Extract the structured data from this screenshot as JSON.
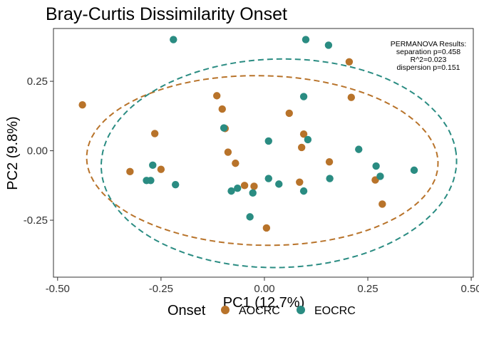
{
  "chart_data": {
    "type": "scatter",
    "title": "Bray-Curtis Dissimilarity Onset",
    "xlabel": "PC1 (12.7%)",
    "ylabel": "PC2 (9.8%)",
    "xlim": [
      -0.51,
      0.505
    ],
    "ylim": [
      -0.455,
      0.44
    ],
    "x_ticks": [
      -0.5,
      -0.25,
      0.0,
      0.25,
      0.5
    ],
    "x_tick_labels": [
      "-0.50",
      "-0.25",
      "0.00",
      "0.25",
      "0.50"
    ],
    "y_ticks": [
      -0.25,
      0.0,
      0.25
    ],
    "y_tick_labels": [
      "-0.25",
      "0.00",
      "0.25"
    ],
    "grid": false,
    "annotation": [
      "PERMANOVA Results:",
      "separation p=0.458",
      "R^2=0.023",
      "dispersion p=0.151"
    ],
    "legend": {
      "title": "Onset",
      "position": "bottom"
    },
    "series": [
      {
        "name": "AOCRC",
        "color": "#B8732A",
        "ellipse": {
          "center": [
            -0.005,
            -0.035
          ],
          "radius": [
            0.425,
            0.305
          ],
          "angle_deg": -3
        },
        "points": [
          [
            -0.44,
            0.165
          ],
          [
            -0.265,
            0.062
          ],
          [
            -0.325,
            -0.075
          ],
          [
            -0.25,
            -0.067
          ],
          [
            -0.115,
            0.198
          ],
          [
            -0.102,
            0.15
          ],
          [
            -0.095,
            0.08
          ],
          [
            -0.088,
            -0.005
          ],
          [
            -0.07,
            -0.045
          ],
          [
            -0.048,
            -0.125
          ],
          [
            -0.025,
            -0.128
          ],
          [
            0.005,
            -0.278
          ],
          [
            0.06,
            0.135
          ],
          [
            0.09,
            0.012
          ],
          [
            0.085,
            -0.113
          ],
          [
            0.095,
            0.06
          ],
          [
            0.157,
            -0.04
          ],
          [
            0.205,
            0.32
          ],
          [
            0.21,
            0.192
          ],
          [
            0.268,
            -0.105
          ],
          [
            0.285,
            -0.192
          ]
        ]
      },
      {
        "name": "EOCRC",
        "color": "#2A8C82",
        "ellipse": {
          "center": [
            0.035,
            -0.045
          ],
          "radius": [
            0.43,
            0.375
          ],
          "angle_deg": 5
        },
        "points": [
          [
            -0.22,
            0.4
          ],
          [
            0.1,
            0.4
          ],
          [
            0.155,
            0.38
          ],
          [
            -0.285,
            -0.107
          ],
          [
            -0.275,
            -0.107
          ],
          [
            -0.27,
            -0.052
          ],
          [
            -0.215,
            -0.122
          ],
          [
            -0.098,
            0.082
          ],
          [
            -0.08,
            -0.145
          ],
          [
            -0.065,
            -0.135
          ],
          [
            -0.035,
            -0.238
          ],
          [
            -0.028,
            -0.152
          ],
          [
            0.01,
            0.035
          ],
          [
            0.01,
            -0.1
          ],
          [
            0.035,
            -0.12
          ],
          [
            0.095,
            0.195
          ],
          [
            0.095,
            -0.145
          ],
          [
            0.105,
            0.04
          ],
          [
            0.158,
            -0.1
          ],
          [
            0.228,
            0.005
          ],
          [
            0.27,
            -0.055
          ],
          [
            0.28,
            -0.092
          ],
          [
            0.362,
            -0.07
          ]
        ]
      }
    ]
  }
}
